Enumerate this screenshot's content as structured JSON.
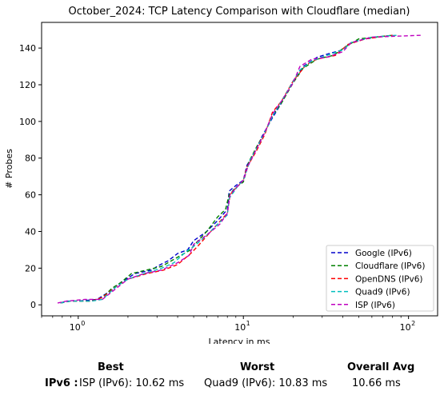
{
  "chart_data": {
    "type": "line",
    "title": "October_2024: TCP Latency Comparison with Cloudflare (median)",
    "xlabel": "Latency in ms",
    "ylabel": "# Probes",
    "xscale": "log",
    "xlim": [
      0.6,
      150
    ],
    "ylim": [
      -6,
      154
    ],
    "xticks": [
      {
        "value": 1,
        "label": "10",
        "exp": "0"
      },
      {
        "value": 10,
        "label": "10",
        "exp": "1"
      },
      {
        "value": 100,
        "label": "10",
        "exp": "2"
      }
    ],
    "yticks": [
      0,
      20,
      40,
      60,
      80,
      100,
      120,
      140
    ],
    "grid": false,
    "legend_position": "lower-right",
    "series": [
      {
        "name": "Google (IPv6)",
        "color": "#0000cc",
        "points": [
          [
            0.78,
            1
          ],
          [
            0.85,
            2
          ],
          [
            1.0,
            2
          ],
          [
            1.3,
            3
          ],
          [
            1.6,
            8
          ],
          [
            1.8,
            12
          ],
          [
            2.2,
            17
          ],
          [
            2.8,
            19
          ],
          [
            3.0,
            21
          ],
          [
            3.5,
            24
          ],
          [
            4.0,
            28
          ],
          [
            4.6,
            30
          ],
          [
            5.0,
            35
          ],
          [
            6.0,
            40
          ],
          [
            7.0,
            46
          ],
          [
            8.0,
            52
          ],
          [
            8.2,
            62
          ],
          [
            9.0,
            65
          ],
          [
            10.0,
            68
          ],
          [
            10.5,
            76
          ],
          [
            12.0,
            85
          ],
          [
            13.0,
            92
          ],
          [
            15.0,
            102
          ],
          [
            17.0,
            110
          ],
          [
            20.0,
            122
          ],
          [
            23.0,
            130
          ],
          [
            28.0,
            135
          ],
          [
            33.0,
            137
          ],
          [
            40.0,
            139
          ],
          [
            42.0,
            141
          ],
          [
            45.0,
            143
          ],
          [
            55.0,
            145
          ],
          [
            65.0,
            146
          ],
          [
            80.0,
            147
          ]
        ]
      },
      {
        "name": "Cloudflare (IPv6)",
        "color": "#008000",
        "points": [
          [
            0.78,
            1
          ],
          [
            0.9,
            2
          ],
          [
            1.2,
            2
          ],
          [
            1.4,
            4
          ],
          [
            1.6,
            9
          ],
          [
            1.8,
            12
          ],
          [
            2.1,
            17
          ],
          [
            2.6,
            19
          ],
          [
            3.2,
            21
          ],
          [
            4.0,
            26
          ],
          [
            4.8,
            30
          ],
          [
            5.2,
            34
          ],
          [
            6.0,
            40
          ],
          [
            7.0,
            48
          ],
          [
            7.8,
            52
          ],
          [
            8.2,
            60
          ],
          [
            9.0,
            64
          ],
          [
            10.0,
            67
          ],
          [
            10.8,
            78
          ],
          [
            12.0,
            86
          ],
          [
            13.5,
            94
          ],
          [
            15.0,
            103
          ],
          [
            17.0,
            110
          ],
          [
            20.0,
            121
          ],
          [
            23.0,
            129
          ],
          [
            28.0,
            134
          ],
          [
            35.0,
            136
          ],
          [
            42.0,
            141
          ],
          [
            50.0,
            145
          ],
          [
            80.0,
            147
          ]
        ]
      },
      {
        "name": "OpenDNS (IPv6)",
        "color": "#ff0000",
        "points": [
          [
            0.78,
            1
          ],
          [
            0.9,
            2
          ],
          [
            1.2,
            2
          ],
          [
            1.4,
            4
          ],
          [
            1.7,
            10
          ],
          [
            2.0,
            14
          ],
          [
            2.6,
            17
          ],
          [
            3.3,
            19
          ],
          [
            4.0,
            22
          ],
          [
            4.8,
            28
          ],
          [
            5.3,
            32
          ],
          [
            6.2,
            39
          ],
          [
            7.3,
            46
          ],
          [
            8.0,
            50
          ],
          [
            8.3,
            60
          ],
          [
            9.3,
            65
          ],
          [
            10.0,
            68
          ],
          [
            10.5,
            75
          ],
          [
            12.0,
            84
          ],
          [
            13.5,
            93
          ],
          [
            15.0,
            105
          ],
          [
            17.0,
            111
          ],
          [
            20.0,
            122
          ],
          [
            24.0,
            131
          ],
          [
            28.0,
            134
          ],
          [
            36.0,
            136
          ],
          [
            43.0,
            142
          ],
          [
            55.0,
            145
          ],
          [
            80.0,
            147
          ]
        ]
      },
      {
        "name": "Quad9 (IPv6)",
        "color": "#00bfbf",
        "points": [
          [
            0.78,
            1
          ],
          [
            0.9,
            2
          ],
          [
            1.2,
            2
          ],
          [
            1.4,
            3
          ],
          [
            1.7,
            10
          ],
          [
            2.0,
            14
          ],
          [
            2.5,
            17
          ],
          [
            3.2,
            20
          ],
          [
            3.8,
            23
          ],
          [
            4.5,
            29
          ],
          [
            5.2,
            33
          ],
          [
            6.0,
            38
          ],
          [
            7.0,
            44
          ],
          [
            8.0,
            49
          ],
          [
            8.2,
            58
          ],
          [
            9.3,
            65
          ],
          [
            10.0,
            68
          ],
          [
            11.0,
            79
          ],
          [
            12.5,
            88
          ],
          [
            14.0,
            97
          ],
          [
            15.0,
            103
          ],
          [
            17.0,
            111
          ],
          [
            19.5,
            120
          ],
          [
            22.0,
            128
          ],
          [
            26.0,
            133
          ],
          [
            32.0,
            136
          ],
          [
            40.0,
            139
          ],
          [
            45.0,
            143
          ],
          [
            60.0,
            146
          ],
          [
            85.0,
            147
          ]
        ]
      },
      {
        "name": "ISP (IPv6)",
        "color": "#bf00bf",
        "points": [
          [
            0.75,
            1
          ],
          [
            0.85,
            2
          ],
          [
            1.1,
            3
          ],
          [
            1.4,
            3
          ],
          [
            1.7,
            9
          ],
          [
            2.0,
            14
          ],
          [
            2.5,
            17
          ],
          [
            3.2,
            19
          ],
          [
            4.0,
            23
          ],
          [
            4.7,
            27
          ],
          [
            5.0,
            33
          ],
          [
            6.0,
            38
          ],
          [
            7.2,
            44
          ],
          [
            8.0,
            50
          ],
          [
            8.3,
            60
          ],
          [
            9.3,
            65
          ],
          [
            10.0,
            68
          ],
          [
            10.7,
            76
          ],
          [
            12.0,
            85
          ],
          [
            13.5,
            94
          ],
          [
            15.0,
            104
          ],
          [
            17.0,
            111
          ],
          [
            20.0,
            121
          ],
          [
            22.0,
            130
          ],
          [
            26.0,
            134
          ],
          [
            32.0,
            135
          ],
          [
            40.0,
            138
          ],
          [
            45.0,
            143
          ],
          [
            60.0,
            146
          ],
          [
            120.0,
            147
          ]
        ]
      }
    ]
  },
  "summary": {
    "best_header": "Best",
    "worst_header": "Worst",
    "avg_header": "Overall Avg",
    "row_label": "IPv6 :",
    "best_value": "ISP (IPv6): 10.62 ms",
    "worst_value": "Quad9 (IPv6): 10.83 ms",
    "avg_value": "10.66 ms"
  }
}
